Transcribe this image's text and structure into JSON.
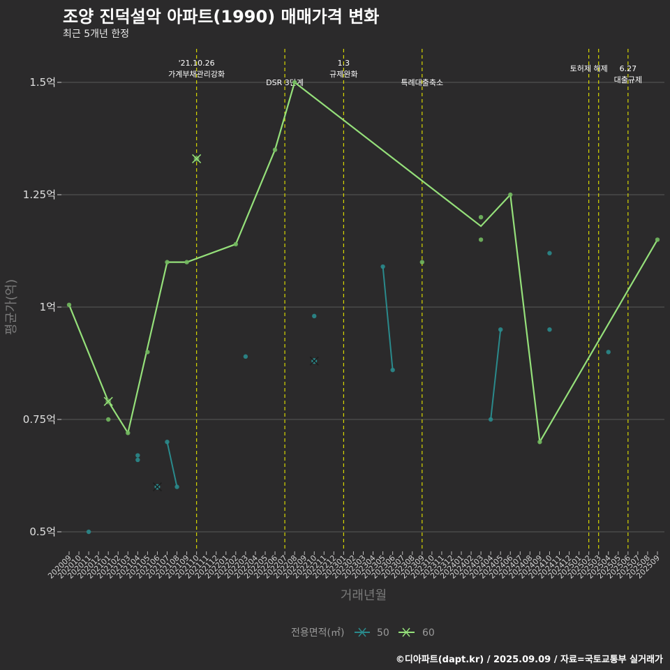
{
  "title": "조양 진덕설악 아파트(1990) 매매가격 변화",
  "subtitle": "최근 5개년 한정",
  "caption": "©디아파트(dapt.kr) / 2025.09.09 / 자료=국토교통부 실거래가",
  "colors": {
    "background": "#2b2a2b",
    "grid": "#5a5a5a",
    "event_line": "#d8d800",
    "series_50": "#2a8a8c",
    "series_60": "#95e07a"
  },
  "chart_data": {
    "type": "line",
    "xlabel": "거래년월",
    "ylabel": "평균가(억)",
    "ylim": [
      0.43,
      1.57
    ],
    "y_ticks": [
      {
        "v": 0.5,
        "label": "0.5억"
      },
      {
        "v": 0.75,
        "label": "0.75억"
      },
      {
        "v": 1.0,
        "label": "1억"
      },
      {
        "v": 1.25,
        "label": "1.25억"
      },
      {
        "v": 1.5,
        "label": "1.5억"
      }
    ],
    "categories": [
      "202009",
      "202010",
      "202011",
      "202012",
      "202101",
      "202102",
      "202103",
      "202104",
      "202105",
      "202106",
      "202107",
      "202108",
      "202109",
      "202110",
      "202111",
      "202112",
      "202201",
      "202202",
      "202203",
      "202204",
      "202205",
      "202206",
      "202207",
      "202208",
      "202209",
      "202210",
      "202211",
      "202212",
      "202301",
      "202302",
      "202303",
      "202304",
      "202305",
      "202306",
      "202307",
      "202308",
      "202309",
      "202310",
      "202311",
      "202312",
      "202401",
      "202402",
      "202403",
      "202404",
      "202405",
      "202406",
      "202407",
      "202408",
      "202409",
      "202410",
      "202411",
      "202412",
      "202501",
      "202502",
      "202503",
      "202504",
      "202505",
      "202506",
      "202507",
      "202508",
      "202509"
    ],
    "legend_title": "전용면적(㎡)",
    "legend_position": "bottom",
    "series": [
      {
        "name": "50",
        "color": "#2a8a8c",
        "line_segments": [
          [
            [
              "202107",
              0.7
            ],
            [
              "202108",
              0.6
            ]
          ],
          [
            [
              "202305",
              1.09
            ],
            [
              "202306",
              0.86
            ]
          ],
          [
            [
              "202404",
              0.75
            ],
            [
              "202405",
              0.95
            ]
          ]
        ],
        "points": [
          [
            "202011",
            0.5
          ],
          [
            "202104",
            0.67
          ],
          [
            "202104",
            0.66
          ],
          [
            "202107",
            0.7
          ],
          [
            "202108",
            0.6
          ],
          [
            "202203",
            0.89
          ],
          [
            "202210",
            0.98
          ],
          [
            "202305",
            1.09
          ],
          [
            "202306",
            0.86
          ],
          [
            "202404",
            0.75
          ],
          [
            "202405",
            0.95
          ],
          [
            "202410",
            1.12
          ],
          [
            "202410",
            0.95
          ],
          [
            "202504",
            0.9
          ]
        ],
        "cross_markers": [
          [
            "202106",
            0.6
          ],
          [
            "202210",
            0.88
          ]
        ]
      },
      {
        "name": "60",
        "color": "#95e07a",
        "line": [
          [
            "202009",
            1.005
          ],
          [
            "202101",
            0.79
          ],
          [
            "202103",
            0.72
          ],
          [
            "202107",
            1.1
          ],
          [
            "202109",
            1.1
          ],
          [
            "202202",
            1.14
          ],
          [
            "202206",
            1.35
          ],
          [
            "202208",
            1.5
          ],
          [
            "202403",
            1.18
          ],
          [
            "202406",
            1.25
          ],
          [
            "202409",
            0.7
          ],
          [
            "202509",
            1.15
          ]
        ],
        "points": [
          [
            "202009",
            1.005
          ],
          [
            "202101",
            0.75
          ],
          [
            "202103",
            0.72
          ],
          [
            "202105",
            0.9
          ],
          [
            "202107",
            1.1
          ],
          [
            "202109",
            1.1
          ],
          [
            "202202",
            1.14
          ],
          [
            "202206",
            1.35
          ],
          [
            "202208",
            1.5
          ],
          [
            "202309",
            1.1
          ],
          [
            "202403",
            1.2
          ],
          [
            "202403",
            1.15
          ],
          [
            "202406",
            1.25
          ],
          [
            "202409",
            0.7
          ],
          [
            "202509",
            1.15
          ]
        ],
        "cross_markers": [
          [
            "202101",
            0.79
          ],
          [
            "202110",
            1.33
          ]
        ]
      }
    ],
    "events": [
      {
        "x": "202110",
        "lines": [
          "'21.10.26",
          "가계부채관리강화"
        ],
        "row": 0
      },
      {
        "x": "202207",
        "lines": [
          "DSR 3단계"
        ],
        "row": 2
      },
      {
        "x": "202301",
        "lines": [
          "1.3",
          "규제완화"
        ],
        "row": 0
      },
      {
        "x": "202309",
        "lines": [
          "특례대출축소"
        ],
        "row": 2
      },
      {
        "x": "202502",
        "lines": [
          "토허제 해제"
        ],
        "row": 1
      },
      {
        "x": "202503",
        "lines": [],
        "row": 0
      },
      {
        "x": "202506",
        "lines": [
          "6.27",
          "대출규제"
        ],
        "row": 1
      }
    ]
  }
}
